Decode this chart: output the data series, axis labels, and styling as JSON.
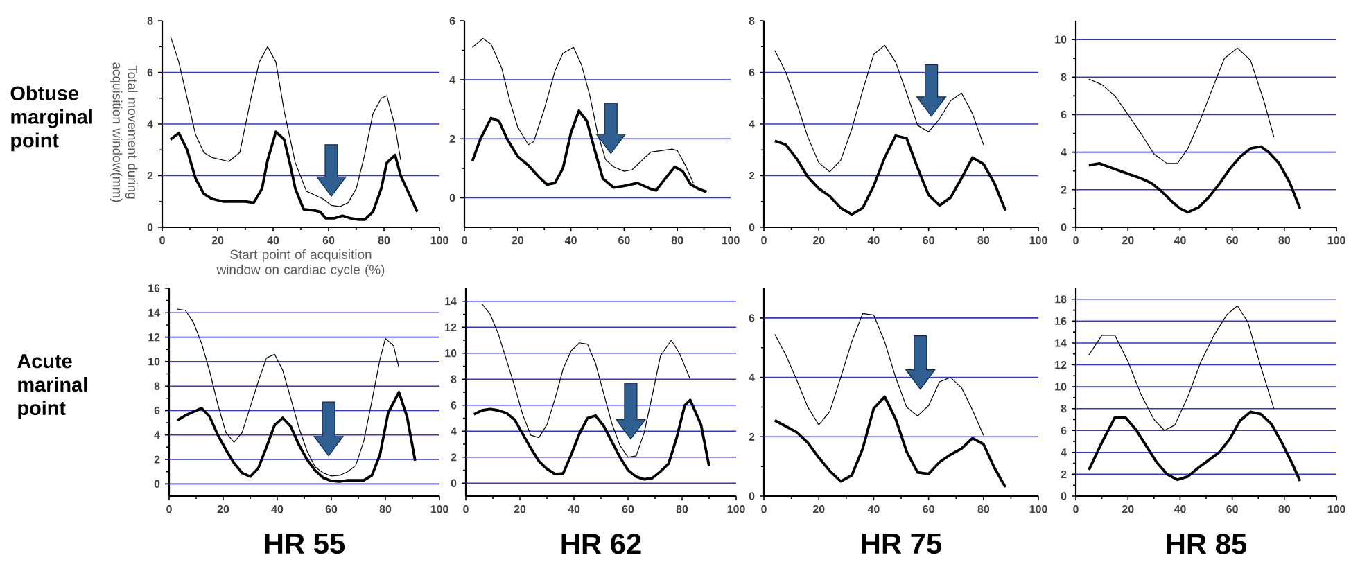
{
  "chart_data": [
    {
      "type": "line",
      "xlabel": "Start point of acquisition window on cardiac cycle (%)",
      "ylabel": "Total movement during acquisition window(mm)",
      "annotations": [
        "Obtuse marginal point"
      ],
      "xlim": [
        0,
        100
      ],
      "ylim": [
        0,
        8
      ],
      "xticks": [
        0,
        20,
        40,
        60,
        80,
        100
      ],
      "yticks": [
        0,
        2,
        4,
        6,
        8
      ],
      "grid": "y",
      "series": [
        {
          "color": "#000000",
          "x": [
            3,
            6,
            9,
            12,
            15,
            18,
            24,
            28,
            32,
            35,
            38,
            41,
            44,
            48,
            52,
            55,
            58,
            61,
            64,
            67,
            70,
            73,
            76,
            79,
            81,
            84,
            86
          ],
          "values": [
            7.4,
            6.4,
            5.0,
            3.6,
            2.9,
            2.7,
            2.55,
            2.9,
            5.0,
            6.4,
            7.0,
            6.4,
            4.5,
            2.5,
            1.4,
            1.25,
            1.1,
            0.85,
            0.8,
            0.95,
            1.5,
            2.8,
            4.4,
            5.0,
            5.1,
            3.9,
            2.6
          ]
        },
        {
          "color": "#000000",
          "x": [
            3,
            6,
            9,
            12,
            15,
            18,
            22,
            26,
            30,
            33,
            36,
            38,
            41,
            44,
            46,
            48,
            51,
            55,
            57,
            59,
            62,
            65,
            68,
            71,
            73,
            76,
            79,
            81,
            84,
            86,
            89,
            92
          ],
          "values": [
            3.4,
            3.65,
            3.0,
            1.9,
            1.3,
            1.1,
            1.0,
            1.0,
            1.0,
            0.95,
            1.5,
            2.6,
            3.7,
            3.4,
            2.5,
            1.5,
            0.7,
            0.65,
            0.6,
            0.35,
            0.35,
            0.45,
            0.35,
            0.3,
            0.3,
            0.6,
            1.5,
            2.5,
            2.8,
            2.0,
            1.3,
            0.6
          ]
        }
      ]
    },
    {
      "type": "line",
      "xlim": [
        0,
        100
      ],
      "ylim": [
        -1,
        6
      ],
      "xticks": [
        0,
        20,
        40,
        60,
        80,
        100
      ],
      "yticks": [
        0,
        2,
        4,
        6
      ],
      "grid": "y",
      "series": [
        {
          "color": "#000000",
          "x": [
            3,
            7,
            10,
            14,
            17,
            20,
            24,
            26,
            30,
            34,
            37,
            41,
            44,
            47,
            50,
            53,
            56,
            60,
            63,
            67,
            70,
            74,
            78,
            80,
            83,
            86
          ],
          "values": [
            5.1,
            5.4,
            5.2,
            4.4,
            3.3,
            2.4,
            1.8,
            1.9,
            3.0,
            4.3,
            4.9,
            5.1,
            4.5,
            3.5,
            2.2,
            1.3,
            1.05,
            0.9,
            0.95,
            1.3,
            1.55,
            1.6,
            1.65,
            1.6,
            1.1,
            0.5
          ]
        },
        {
          "color": "#000000",
          "x": [
            3,
            6,
            10,
            13,
            16,
            20,
            24,
            28,
            31,
            34,
            37,
            40,
            43,
            46,
            49,
            52,
            56,
            60,
            65,
            70,
            72,
            75,
            79,
            82,
            85,
            88,
            91
          ],
          "values": [
            1.25,
            2.0,
            2.7,
            2.6,
            2.0,
            1.4,
            1.1,
            0.7,
            0.45,
            0.5,
            1.0,
            2.2,
            2.95,
            2.6,
            1.6,
            0.65,
            0.35,
            0.4,
            0.5,
            0.3,
            0.25,
            0.6,
            1.05,
            0.9,
            0.45,
            0.3,
            0.2
          ]
        }
      ]
    },
    {
      "type": "line",
      "xlim": [
        0,
        100
      ],
      "ylim": [
        0,
        8
      ],
      "xticks": [
        0,
        20,
        40,
        60,
        80,
        100
      ],
      "yticks": [
        0,
        2,
        4,
        6,
        8
      ],
      "grid": "y",
      "series": [
        {
          "color": "#000000",
          "x": [
            4,
            8,
            12,
            16,
            20,
            24,
            28,
            32,
            36,
            40,
            44,
            48,
            52,
            56,
            60,
            64,
            68,
            72,
            76,
            80
          ],
          "values": [
            6.85,
            6.0,
            4.8,
            3.5,
            2.5,
            2.15,
            2.6,
            3.8,
            5.3,
            6.7,
            7.05,
            6.4,
            5.2,
            3.95,
            3.7,
            4.2,
            4.9,
            5.2,
            4.4,
            3.2
          ]
        },
        {
          "color": "#000000",
          "x": [
            4,
            8,
            12,
            16,
            20,
            24,
            28,
            32,
            36,
            40,
            44,
            48,
            52,
            56,
            60,
            64,
            68,
            72,
            76,
            80,
            84,
            88
          ],
          "values": [
            3.35,
            3.2,
            2.65,
            1.95,
            1.5,
            1.2,
            0.75,
            0.5,
            0.75,
            1.6,
            2.7,
            3.55,
            3.45,
            2.3,
            1.25,
            0.85,
            1.15,
            1.9,
            2.7,
            2.45,
            1.7,
            0.65
          ]
        }
      ]
    },
    {
      "type": "line",
      "xlim": [
        0,
        100
      ],
      "ylim": [
        0,
        11
      ],
      "xticks": [
        0,
        20,
        40,
        60,
        80,
        100
      ],
      "yticks": [
        0,
        2,
        4,
        6,
        8,
        10
      ],
      "grid": "y",
      "series": [
        {
          "color": "#000000",
          "x": [
            5,
            10,
            15,
            20,
            25,
            30,
            35,
            39,
            43,
            48,
            53,
            57,
            62,
            67,
            72,
            76
          ],
          "values": [
            7.9,
            7.6,
            7.0,
            6.0,
            5.0,
            3.9,
            3.4,
            3.4,
            4.2,
            5.8,
            7.6,
            9.0,
            9.55,
            8.9,
            6.8,
            4.8
          ]
        },
        {
          "color": "#000000",
          "x": [
            5,
            9,
            13,
            17,
            21,
            25,
            29,
            33,
            37,
            40,
            43,
            47,
            51,
            55,
            59,
            63,
            67,
            71,
            74,
            78,
            82,
            86
          ],
          "values": [
            3.3,
            3.4,
            3.2,
            3.0,
            2.8,
            2.6,
            2.35,
            1.9,
            1.35,
            1.0,
            0.8,
            1.05,
            1.6,
            2.3,
            3.1,
            3.75,
            4.2,
            4.3,
            4.0,
            3.4,
            2.4,
            1.0
          ]
        }
      ]
    },
    {
      "type": "line",
      "xlabel": "HR 55",
      "annotations": [
        "Acute marinal point"
      ],
      "xlim": [
        0,
        100
      ],
      "ylim": [
        -1,
        16
      ],
      "xticks": [
        0,
        20,
        40,
        60,
        80,
        100
      ],
      "yticks": [
        0,
        2,
        4,
        6,
        8,
        10,
        12,
        14,
        16
      ],
      "grid": "y",
      "series": [
        {
          "color": "#000000",
          "x": [
            3,
            6,
            9,
            12,
            15,
            18,
            21,
            24,
            27,
            30,
            33,
            36,
            39,
            42,
            45,
            48,
            51,
            54,
            57,
            60,
            63,
            66,
            69,
            72,
            75,
            78,
            80,
            83,
            85
          ],
          "values": [
            14.3,
            14.2,
            13.2,
            11.5,
            9.2,
            6.5,
            4.2,
            3.4,
            4.2,
            6.3,
            8.4,
            10.3,
            10.6,
            9.3,
            7.0,
            4.6,
            2.7,
            1.4,
            0.9,
            0.65,
            0.7,
            1.0,
            1.5,
            3.5,
            6.8,
            10.2,
            11.9,
            11.3,
            9.5
          ]
        },
        {
          "color": "#000000",
          "x": [
            3,
            6,
            9,
            12,
            15,
            18,
            21,
            24,
            27,
            30,
            33,
            36,
            39,
            42,
            45,
            48,
            51,
            54,
            57,
            60,
            63,
            66,
            69,
            72,
            75,
            78,
            81,
            85,
            88,
            91
          ],
          "values": [
            5.2,
            5.6,
            5.9,
            6.2,
            5.5,
            4.0,
            2.8,
            1.7,
            0.9,
            0.6,
            1.3,
            3.0,
            4.8,
            5.4,
            4.7,
            3.2,
            2.0,
            1.1,
            0.5,
            0.25,
            0.2,
            0.3,
            0.3,
            0.3,
            0.7,
            2.4,
            5.8,
            7.5,
            5.5,
            1.9
          ]
        }
      ]
    },
    {
      "type": "line",
      "xlabel": "HR 62",
      "xlim": [
        0,
        100
      ],
      "ylim": [
        -1,
        15
      ],
      "xticks": [
        0,
        20,
        40,
        60,
        80,
        100
      ],
      "yticks": [
        0,
        2,
        4,
        6,
        8,
        10,
        12,
        14
      ],
      "grid": "y",
      "series": [
        {
          "color": "#000000",
          "x": [
            3,
            6,
            9,
            12,
            15,
            18,
            21,
            24,
            27,
            30,
            33,
            36,
            39,
            42,
            45,
            48,
            51,
            54,
            57,
            60,
            63,
            66,
            69,
            72,
            76,
            79,
            83
          ],
          "values": [
            13.8,
            13.8,
            13.0,
            11.5,
            9.5,
            7.5,
            5.3,
            3.7,
            3.5,
            4.5,
            6.5,
            8.8,
            10.2,
            10.8,
            10.7,
            9.2,
            6.9,
            4.6,
            2.9,
            2.0,
            2.1,
            3.9,
            6.8,
            9.8,
            11.0,
            10.0,
            8.0
          ]
        },
        {
          "color": "#000000",
          "x": [
            3,
            6,
            9,
            12,
            15,
            18,
            21,
            24,
            27,
            30,
            33,
            36,
            39,
            42,
            45,
            48,
            51,
            54,
            57,
            60,
            63,
            66,
            69,
            72,
            75,
            78,
            81,
            83,
            87,
            90
          ],
          "values": [
            5.3,
            5.6,
            5.7,
            5.6,
            5.4,
            4.9,
            3.8,
            2.7,
            1.7,
            1.1,
            0.7,
            0.75,
            2.2,
            3.8,
            5.0,
            5.2,
            4.4,
            3.2,
            2.0,
            1.0,
            0.5,
            0.3,
            0.4,
            0.9,
            1.5,
            3.5,
            6.0,
            6.4,
            4.5,
            1.3
          ]
        }
      ]
    },
    {
      "type": "line",
      "xlabel": "HR 75",
      "xlim": [
        0,
        100
      ],
      "ylim": [
        0,
        7
      ],
      "xticks": [
        0,
        20,
        40,
        60,
        80,
        100
      ],
      "yticks": [
        0,
        2,
        4,
        6
      ],
      "grid": "y",
      "series": [
        {
          "color": "#000000",
          "x": [
            4,
            8,
            12,
            16,
            20,
            24,
            28,
            32,
            36,
            40,
            44,
            48,
            52,
            56,
            60,
            64,
            68,
            72,
            76,
            80
          ],
          "values": [
            5.45,
            4.75,
            3.9,
            3.0,
            2.4,
            2.85,
            4.0,
            5.2,
            6.15,
            6.1,
            5.2,
            4.0,
            3.0,
            2.7,
            3.05,
            3.85,
            4.0,
            3.65,
            2.9,
            2.05
          ]
        },
        {
          "color": "#000000",
          "x": [
            4,
            8,
            12,
            16,
            20,
            24,
            28,
            32,
            36,
            40,
            44,
            48,
            52,
            56,
            60,
            64,
            68,
            72,
            76,
            80,
            84,
            88
          ],
          "values": [
            2.55,
            2.35,
            2.15,
            1.8,
            1.3,
            0.85,
            0.5,
            0.7,
            1.6,
            2.95,
            3.35,
            2.6,
            1.5,
            0.8,
            0.75,
            1.15,
            1.4,
            1.6,
            1.95,
            1.75,
            0.95,
            0.3
          ]
        }
      ]
    },
    {
      "type": "line",
      "xlabel": "HR 85",
      "xlim": [
        0,
        100
      ],
      "ylim": [
        0,
        19
      ],
      "xticks": [
        0,
        20,
        40,
        60,
        80,
        100
      ],
      "yticks": [
        0,
        2,
        4,
        6,
        8,
        10,
        12,
        14,
        16,
        18
      ],
      "grid": "y",
      "series": [
        {
          "color": "#000000",
          "x": [
            5,
            10,
            15,
            20,
            25,
            30,
            34,
            38,
            43,
            48,
            53,
            58,
            62,
            66,
            71,
            76
          ],
          "values": [
            12.9,
            14.7,
            14.7,
            12.3,
            9.3,
            7.0,
            6.0,
            6.5,
            9.1,
            12.3,
            14.7,
            16.6,
            17.4,
            15.9,
            11.8,
            8.0
          ]
        },
        {
          "color": "#000000",
          "x": [
            5,
            10,
            15,
            19,
            23,
            27,
            31,
            35,
            39,
            43,
            47,
            51,
            55,
            59,
            63,
            67,
            71,
            75,
            79,
            83,
            86
          ],
          "values": [
            2.4,
            4.9,
            7.2,
            7.2,
            6.1,
            4.6,
            3.1,
            2.0,
            1.5,
            1.8,
            2.6,
            3.3,
            4.0,
            5.2,
            6.9,
            7.7,
            7.5,
            6.6,
            4.9,
            3.0,
            1.4
          ]
        }
      ]
    }
  ]
}
